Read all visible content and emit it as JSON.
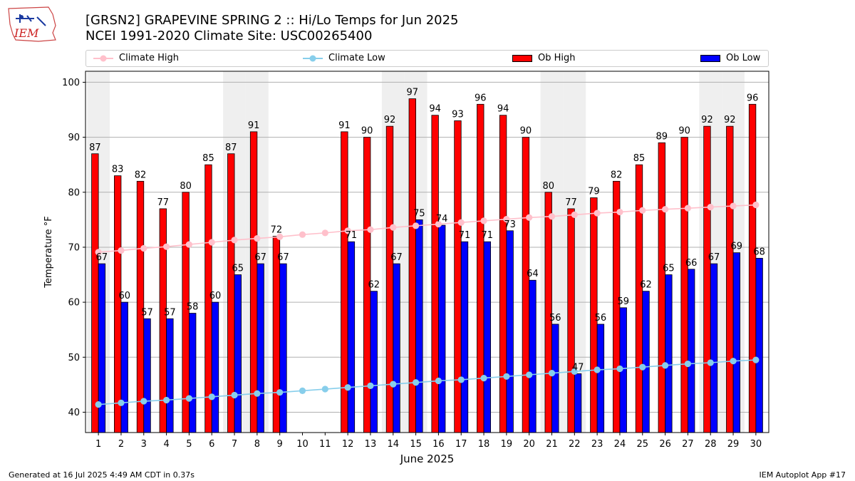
{
  "header": {
    "title_line1": "[GRSN2] GRAPEVINE SPRING 2 :: Hi/Lo Temps for Jun 2025",
    "title_line2": "NCEI 1991-2020 Climate Site: USC00265400"
  },
  "logo": {
    "text": "IEM"
  },
  "legend": {
    "climate_high": "Climate High",
    "climate_low": "Climate Low",
    "ob_high": "Ob High",
    "ob_low": "Ob Low"
  },
  "footer": {
    "generated": "Generated at 16 Jul 2025 4:49 AM CDT in 0.37s",
    "app": "IEM Autoplot App #17"
  },
  "colors": {
    "ob_high": "#ff0000",
    "ob_low": "#0000ff",
    "climate_high": "#ffc0cb",
    "climate_low": "#87ceeb",
    "weekend_shade": "#efefef",
    "grid": "#b0b0b0"
  },
  "chart_data": {
    "type": "bar",
    "xlabel": "June 2025",
    "ylabel": "Temperature °F",
    "ylim": [
      36.3,
      102
    ],
    "yticks": [
      40,
      50,
      60,
      70,
      80,
      90,
      100
    ],
    "grid": "horizontal",
    "legend_position": "top",
    "categories": [
      "1",
      "2",
      "3",
      "4",
      "5",
      "6",
      "7",
      "8",
      "9",
      "10",
      "11",
      "12",
      "13",
      "14",
      "15",
      "16",
      "17",
      "18",
      "19",
      "20",
      "21",
      "22",
      "23",
      "24",
      "25",
      "26",
      "27",
      "28",
      "29",
      "30"
    ],
    "weekend_days": [
      1,
      7,
      8,
      14,
      15,
      21,
      22,
      28,
      29
    ],
    "series": [
      {
        "name": "Ob High",
        "kind": "bar",
        "values": [
          87,
          83,
          82,
          77,
          80,
          85,
          87,
          91,
          72,
          null,
          null,
          91,
          90,
          92,
          97,
          94,
          93,
          96,
          94,
          90,
          80,
          77,
          79,
          82,
          85,
          89,
          90,
          92,
          92,
          96
        ]
      },
      {
        "name": "Ob Low",
        "kind": "bar",
        "values": [
          67,
          60,
          57,
          57,
          58,
          60,
          65,
          67,
          67,
          null,
          null,
          71,
          62,
          67,
          75,
          74,
          71,
          71,
          73,
          64,
          56,
          47,
          56,
          59,
          62,
          65,
          66,
          67,
          69,
          68
        ]
      },
      {
        "name": "Climate High",
        "kind": "line",
        "values": [
          69.1,
          69.4,
          69.8,
          70.1,
          70.5,
          70.9,
          71.3,
          71.6,
          71.9,
          72.3,
          72.6,
          73.0,
          73.2,
          73.6,
          73.9,
          74.2,
          74.5,
          74.8,
          75.1,
          75.4,
          75.6,
          75.9,
          76.2,
          76.4,
          76.7,
          76.9,
          77.1,
          77.3,
          77.5,
          77.7
        ]
      },
      {
        "name": "Climate Low",
        "kind": "line",
        "values": [
          41.4,
          41.7,
          42.0,
          42.2,
          42.5,
          42.8,
          43.1,
          43.4,
          43.6,
          43.9,
          44.2,
          44.5,
          44.8,
          45.1,
          45.4,
          45.7,
          45.9,
          46.2,
          46.5,
          46.8,
          47.1,
          47.4,
          47.7,
          47.9,
          48.2,
          48.5,
          48.8,
          49.0,
          49.3,
          49.5
        ]
      }
    ]
  }
}
